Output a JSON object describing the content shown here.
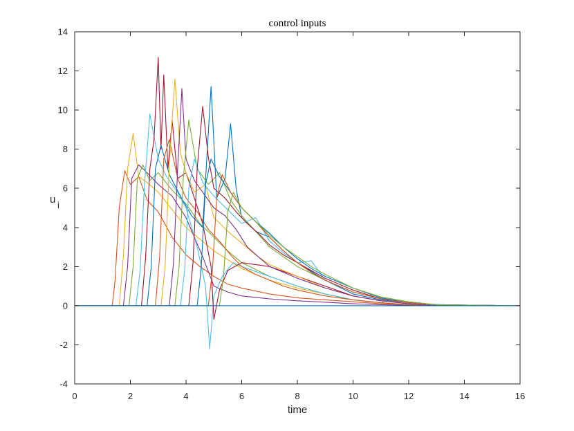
{
  "chart_data": {
    "type": "line",
    "title": "control inputs",
    "xlabel": "time",
    "ylabel": "u",
    "ylabel_subscript": "i",
    "xlim": [
      0,
      16
    ],
    "ylim": [
      -4,
      14
    ],
    "xticks": [
      0,
      2,
      4,
      6,
      8,
      10,
      12,
      14,
      16
    ],
    "yticks": [
      -4,
      -2,
      0,
      2,
      4,
      6,
      8,
      10,
      12,
      14
    ],
    "grid": false,
    "legend": "none",
    "series": [
      {
        "color": "#D95319",
        "x": [
          0,
          1.35,
          1.45,
          1.6,
          1.8,
          2.0,
          2.3,
          2.6,
          3.0,
          3.5,
          4.0,
          4.5,
          5.0,
          5.5,
          6.0,
          7.0,
          8.0,
          9.0,
          10.0,
          11.0,
          12.0,
          13.0,
          16.0
        ],
        "y": [
          0,
          0,
          1.3,
          5.0,
          6.9,
          6.2,
          6.6,
          5.4,
          4.8,
          3.5,
          2.6,
          2.0,
          1.5,
          1.1,
          0.9,
          0.6,
          0.4,
          0.3,
          0.2,
          0.1,
          0.05,
          0,
          0
        ]
      },
      {
        "color": "#EDB120",
        "x": [
          0,
          1.6,
          1.75,
          1.9,
          2.1,
          2.3,
          2.6,
          3.0,
          3.5,
          4.0,
          5.0,
          6.0,
          7.0,
          8.0,
          9.0,
          10.0,
          11.0,
          12.0,
          13.0,
          16.0
        ],
        "y": [
          0,
          0,
          2.5,
          7.0,
          8.8,
          6.6,
          6.3,
          5.8,
          4.9,
          4.0,
          2.8,
          1.9,
          1.3,
          0.9,
          0.6,
          0.3,
          0.15,
          0.05,
          0,
          0
        ]
      },
      {
        "color": "#7E2F8E",
        "x": [
          0,
          1.75,
          1.9,
          2.05,
          2.3,
          2.6,
          3.0,
          3.5,
          4.0,
          4.6,
          5.0,
          5.5,
          6.0,
          7.0,
          8.0,
          9.0,
          10.0,
          11.0,
          12.0,
          13.0,
          16.0
        ],
        "y": [
          0,
          0,
          2.0,
          6.5,
          7.2,
          6.8,
          6.2,
          5.6,
          4.5,
          2.5,
          1.0,
          0.7,
          0.5,
          0.35,
          0.25,
          0.18,
          0.1,
          0.05,
          0.02,
          0,
          0
        ]
      },
      {
        "color": "#77AC30",
        "x": [
          0,
          1.95,
          2.1,
          2.25,
          2.45,
          2.7,
          3.0,
          3.5,
          4.0,
          4.5,
          5.0,
          5.5,
          6.0,
          7.0,
          8.0,
          9.0,
          10.0,
          11.0,
          12.0,
          13.0,
          16.0
        ],
        "y": [
          0,
          0,
          2.0,
          6.5,
          7.2,
          6.4,
          6.8,
          5.9,
          5.2,
          4.2,
          3.5,
          2.8,
          2.2,
          1.5,
          1.0,
          0.6,
          0.3,
          0.15,
          0.05,
          0,
          0
        ]
      },
      {
        "color": "#4DBEEE",
        "x": [
          0,
          2.2,
          2.35,
          2.5,
          2.7,
          3.0,
          3.3,
          3.7,
          4.0,
          4.4,
          4.7,
          4.85,
          5.0,
          5.3,
          5.7,
          6.0,
          7.0,
          8.0,
          9.0,
          10.0,
          11.0,
          12.0,
          13.0,
          16.0
        ],
        "y": [
          0,
          0,
          1.8,
          6.0,
          9.8,
          7.5,
          6.6,
          5.8,
          5.0,
          3.0,
          1.0,
          -2.2,
          0.5,
          1.5,
          2.2,
          2.0,
          1.5,
          1.0,
          0.6,
          0.3,
          0.15,
          0.05,
          0,
          0
        ]
      },
      {
        "color": "#A2142F",
        "x": [
          0,
          2.4,
          2.55,
          2.7,
          2.85,
          3.0,
          3.1,
          3.2,
          3.35,
          3.5,
          3.7,
          4.0,
          4.3,
          4.6,
          4.9,
          5.0,
          5.2,
          5.5,
          6.0,
          7.0,
          8.0,
          9.0,
          10.0,
          11.0,
          12.0,
          13.0,
          16.0
        ],
        "y": [
          0,
          0,
          2.5,
          7.0,
          8.5,
          12.7,
          8.0,
          11.8,
          7.0,
          9.5,
          6.5,
          6.8,
          5.5,
          4.2,
          2.0,
          -0.7,
          0.8,
          1.8,
          2.2,
          2.0,
          1.5,
          1.0,
          0.5,
          0.25,
          0.1,
          0,
          0
        ]
      },
      {
        "color": "#0072BD",
        "x": [
          0,
          2.6,
          2.75,
          2.9,
          3.1,
          3.4,
          3.8,
          4.2,
          4.6,
          4.9,
          5.1,
          5.4,
          5.6,
          5.8,
          6.0,
          6.5,
          7.0,
          7.5,
          8.0,
          9.0,
          10.0,
          11.0,
          12.0,
          13.0,
          14.0,
          16.0
        ],
        "y": [
          0,
          0,
          2.0,
          7.0,
          8.2,
          6.7,
          5.6,
          4.6,
          4.0,
          11.2,
          5.5,
          6.5,
          9.3,
          6.0,
          4.5,
          3.8,
          3.5,
          2.8,
          2.2,
          1.3,
          0.6,
          0.3,
          0.15,
          0.06,
          0.02,
          0
        ]
      },
      {
        "color": "#D95319",
        "x": [
          0,
          2.9,
          3.05,
          3.2,
          3.4,
          3.7,
          4.0,
          4.4,
          4.8,
          5.2,
          5.6,
          6.0,
          6.5,
          7.0,
          7.5,
          8.0,
          9.0,
          10.0,
          11.0,
          12.0,
          13.0,
          16.0
        ],
        "y": [
          0,
          0,
          2.5,
          7.5,
          8.5,
          6.5,
          5.5,
          4.8,
          3.9,
          3.3,
          2.6,
          2.0,
          1.6,
          1.3,
          1.0,
          0.8,
          0.5,
          0.3,
          0.15,
          0.05,
          0,
          0
        ]
      },
      {
        "color": "#EDB120",
        "x": [
          0,
          3.1,
          3.25,
          3.4,
          3.6,
          3.8,
          4.0,
          4.3,
          4.7,
          5.0,
          5.5,
          6.0,
          6.5,
          7.0,
          8.0,
          9.0,
          10.0,
          11.0,
          12.0,
          13.0,
          16.0
        ],
        "y": [
          0,
          0,
          2.0,
          7.2,
          11.6,
          7.8,
          6.8,
          5.8,
          6.2,
          4.5,
          3.8,
          3.2,
          2.6,
          2.1,
          1.5,
          0.9,
          0.5,
          0.25,
          0.1,
          0,
          0
        ]
      },
      {
        "color": "#7E2F8E",
        "x": [
          0,
          3.4,
          3.55,
          3.7,
          3.85,
          4.0,
          4.3,
          4.6,
          5.0,
          5.4,
          5.8,
          6.2,
          6.6,
          7.0,
          8.0,
          9.0,
          10.0,
          11.0,
          12.0,
          13.0,
          16.0
        ],
        "y": [
          0,
          0,
          2.2,
          7.0,
          11.1,
          7.5,
          6.4,
          5.8,
          5.0,
          4.6,
          3.9,
          3.0,
          2.5,
          2.0,
          1.4,
          0.9,
          0.5,
          0.25,
          0.1,
          0,
          0
        ]
      },
      {
        "color": "#77AC30",
        "x": [
          0,
          3.6,
          3.75,
          3.9,
          4.1,
          4.4,
          4.8,
          5.2,
          5.6,
          6.0,
          6.5,
          7.0,
          7.5,
          8.0,
          9.0,
          10.0,
          11.0,
          12.0,
          13.0,
          16.0
        ],
        "y": [
          0,
          0,
          2.0,
          6.5,
          9.5,
          7.0,
          6.2,
          6.8,
          5.4,
          4.6,
          3.8,
          3.0,
          2.5,
          2.0,
          1.3,
          0.7,
          0.35,
          0.15,
          0.05,
          0
        ]
      },
      {
        "color": "#4DBEEE",
        "x": [
          0,
          3.8,
          3.95,
          4.1,
          4.3,
          4.6,
          5.0,
          5.5,
          6.0,
          6.5,
          7.0,
          7.5,
          8.0,
          8.5,
          9.0,
          10.0,
          11.0,
          12.0,
          13.0,
          16.0
        ],
        "y": [
          0,
          0,
          1.8,
          6.0,
          7.5,
          6.3,
          5.6,
          4.9,
          4.2,
          4.5,
          3.3,
          2.7,
          2.2,
          2.3,
          1.3,
          0.7,
          0.35,
          0.15,
          0.05,
          0
        ]
      },
      {
        "color": "#A2142F",
        "x": [
          0,
          4.1,
          4.25,
          4.4,
          4.6,
          4.8,
          5.0,
          5.4,
          5.8,
          6.2,
          6.6,
          7.0,
          7.5,
          8.0,
          8.5,
          9.0,
          10.0,
          11.0,
          12.0,
          13.0,
          16.0
        ],
        "y": [
          0,
          0,
          2.2,
          7.0,
          10.2,
          7.6,
          6.0,
          5.5,
          4.8,
          4.2,
          3.7,
          3.1,
          2.6,
          2.2,
          1.8,
          1.4,
          0.8,
          0.35,
          0.15,
          0.05,
          0
        ]
      },
      {
        "color": "#0072BD",
        "x": [
          0,
          4.4,
          4.55,
          4.7,
          4.9,
          5.2,
          5.6,
          6.0,
          6.5,
          7.0,
          7.5,
          8.0,
          8.5,
          9.0,
          10.0,
          11.0,
          12.0,
          13.0,
          16.0
        ],
        "y": [
          0,
          0,
          2.0,
          6.2,
          7.5,
          6.6,
          5.8,
          5.0,
          4.3,
          3.7,
          3.0,
          2.4,
          1.9,
          1.5,
          0.9,
          0.4,
          0.15,
          0.05,
          0
        ]
      },
      {
        "color": "#D95319",
        "x": [
          0,
          4.8,
          4.95,
          5.1,
          5.3,
          5.6,
          6.0,
          6.5,
          7.0,
          7.5,
          8.0,
          8.5,
          9.0,
          10.0,
          11.0,
          12.0,
          13.0,
          16.0
        ],
        "y": [
          0,
          0,
          1.8,
          5.5,
          6.7,
          5.8,
          5.0,
          4.3,
          3.5,
          2.8,
          2.2,
          1.7,
          1.3,
          0.7,
          0.35,
          0.15,
          0.05,
          0
        ]
      },
      {
        "color": "#77AC30",
        "x": [
          0,
          5.2,
          5.35,
          5.5,
          5.7,
          6.0,
          6.5,
          7.0,
          7.5,
          8.0,
          8.5,
          9.0,
          10.0,
          11.0,
          12.0,
          13.0,
          16.0
        ],
        "y": [
          0,
          0,
          1.5,
          4.8,
          5.8,
          5.0,
          4.3,
          3.6,
          3.0,
          2.5,
          2.0,
          1.6,
          0.9,
          0.45,
          0.2,
          0.05,
          0
        ]
      },
      {
        "color": "#0072BD",
        "x": [
          0,
          16
        ],
        "y": [
          0,
          0
        ]
      }
    ]
  }
}
